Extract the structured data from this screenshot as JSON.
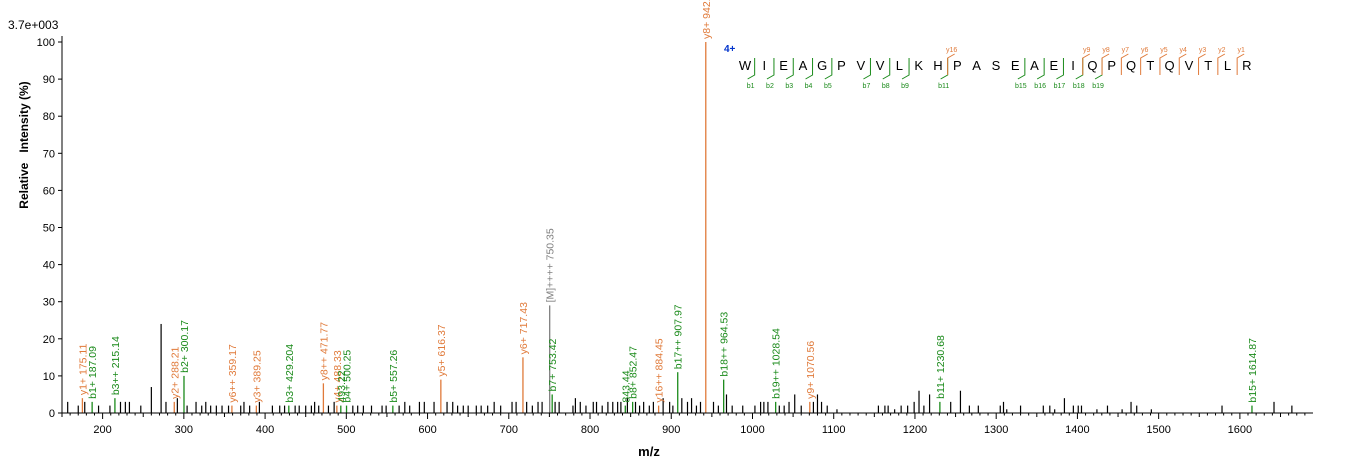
{
  "chart_data": {
    "type": "bar",
    "title": "3.7e+003",
    "xlabel": "m/z",
    "ylabel": "Relative   Intensity (%)",
    "xlim": [
      150,
      1690
    ],
    "ylim": [
      0,
      100
    ],
    "x_ticks": [
      200,
      300,
      400,
      500,
      600,
      700,
      800,
      900,
      1000,
      1100,
      1200,
      1300,
      1400,
      1500,
      1600
    ],
    "y_ticks": [
      0,
      10,
      20,
      30,
      40,
      50,
      60,
      70,
      80,
      90,
      100
    ],
    "grid": false,
    "colors": {
      "b_ion": "#1a8a1a",
      "y_ion": "#e07a3a",
      "other": "#808080",
      "unmatched": "#000000",
      "charge": "#0033cc"
    },
    "annotated_peaks": [
      {
        "mz": 175.11,
        "intensity": 4,
        "label": "y1+ 175.11",
        "ion": "y"
      },
      {
        "mz": 187.09,
        "intensity": 3,
        "label": "b1+ 187.09",
        "ion": "b"
      },
      {
        "mz": 215.14,
        "intensity": 4,
        "label": "b3++ 215.14",
        "ion": "b"
      },
      {
        "mz": 288.21,
        "intensity": 3,
        "label": "y2+ 288.21",
        "ion": "y"
      },
      {
        "mz": 300.17,
        "intensity": 10,
        "label": "b2+ 300.17",
        "ion": "b"
      },
      {
        "mz": 359.17,
        "intensity": 2,
        "label": "y6++ 359.17",
        "ion": "y"
      },
      {
        "mz": 389.25,
        "intensity": 2,
        "label": "y3+ 389.25",
        "ion": "y"
      },
      {
        "mz": 429.2,
        "intensity": 2,
        "label": "b3+ 429.204",
        "ion": "b"
      },
      {
        "mz": 471.77,
        "intensity": 8,
        "label": "y8++ 471.77",
        "ion": "y"
      },
      {
        "mz": 488.33,
        "intensity": 2,
        "label": "y4+ 488.33",
        "ion": "y"
      },
      {
        "mz": 493.22,
        "intensity": 2,
        "label": "493.22",
        "ion": "b"
      },
      {
        "mz": 500.25,
        "intensity": 2,
        "label": "b4+ 500.25",
        "ion": "b"
      },
      {
        "mz": 557.26,
        "intensity": 2,
        "label": "b5+ 557.26",
        "ion": "b"
      },
      {
        "mz": 616.37,
        "intensity": 9,
        "label": "y5+ 616.37",
        "ion": "y"
      },
      {
        "mz": 717.43,
        "intensity": 15,
        "label": "y6+ 717.43",
        "ion": "y"
      },
      {
        "mz": 750.35,
        "intensity": 29,
        "label": "[M]++++ 750.35",
        "ion": "other"
      },
      {
        "mz": 753.42,
        "intensity": 5,
        "label": "b7+ 753.42",
        "ion": "b"
      },
      {
        "mz": 843.44,
        "intensity": 2,
        "label": "843.44",
        "ion": "b"
      },
      {
        "mz": 852.47,
        "intensity": 3,
        "label": "b8+ 852.47",
        "ion": "b"
      },
      {
        "mz": 884.45,
        "intensity": 2,
        "label": "y16++ 884.45",
        "ion": "y"
      },
      {
        "mz": 907.97,
        "intensity": 11,
        "label": "b17++ 907.97",
        "ion": "b"
      },
      {
        "mz": 942.5,
        "intensity": 100,
        "label": "y8+ 942.5",
        "ion": "y"
      },
      {
        "mz": 964.53,
        "intensity": 9,
        "label": "b18++ 964.53",
        "ion": "b"
      },
      {
        "mz": 1028.54,
        "intensity": 3,
        "label": "b19++ 1028.54",
        "ion": "b"
      },
      {
        "mz": 1070.56,
        "intensity": 3,
        "label": "y9+ 1070.56",
        "ion": "y"
      },
      {
        "mz": 1230.68,
        "intensity": 3,
        "label": "b11+ 1230.68",
        "ion": "b"
      },
      {
        "mz": 1614.87,
        "intensity": 2,
        "label": "b15+ 1614.87",
        "ion": "b"
      }
    ],
    "unannotated_peaks": [
      [
        157,
        3
      ],
      [
        170,
        2
      ],
      [
        178,
        3
      ],
      [
        195,
        2
      ],
      [
        209,
        2
      ],
      [
        222,
        3
      ],
      [
        228,
        3
      ],
      [
        233,
        3
      ],
      [
        247,
        2
      ],
      [
        260,
        7
      ],
      [
        272,
        24
      ],
      [
        278,
        3
      ],
      [
        292,
        4
      ],
      [
        304,
        2
      ],
      [
        315,
        3
      ],
      [
        322,
        2
      ],
      [
        327,
        3
      ],
      [
        333,
        2
      ],
      [
        340,
        2
      ],
      [
        347,
        2
      ],
      [
        355,
        2
      ],
      [
        370,
        2
      ],
      [
        374,
        3
      ],
      [
        381,
        2
      ],
      [
        393,
        3
      ],
      [
        409,
        2
      ],
      [
        418,
        2
      ],
      [
        424,
        2
      ],
      [
        437,
        2
      ],
      [
        442,
        2
      ],
      [
        450,
        2
      ],
      [
        457,
        2
      ],
      [
        461,
        3
      ],
      [
        466,
        2
      ],
      [
        478,
        2
      ],
      [
        485,
        3
      ],
      [
        508,
        2
      ],
      [
        514,
        2
      ],
      [
        521,
        2
      ],
      [
        531,
        2
      ],
      [
        544,
        2
      ],
      [
        549,
        2
      ],
      [
        565,
        2
      ],
      [
        572,
        3
      ],
      [
        578,
        2
      ],
      [
        590,
        3
      ],
      [
        596,
        3
      ],
      [
        608,
        3
      ],
      [
        624,
        3
      ],
      [
        631,
        3
      ],
      [
        637,
        2
      ],
      [
        644,
        2
      ],
      [
        650,
        2
      ],
      [
        660,
        2
      ],
      [
        666,
        2
      ],
      [
        674,
        2
      ],
      [
        682,
        3
      ],
      [
        690,
        2
      ],
      [
        704,
        3
      ],
      [
        709,
        3
      ],
      [
        722,
        3
      ],
      [
        729,
        2
      ],
      [
        736,
        3
      ],
      [
        741,
        3
      ],
      [
        757,
        3
      ],
      [
        762,
        3
      ],
      [
        779,
        2
      ],
      [
        782,
        4
      ],
      [
        788,
        3
      ],
      [
        795,
        2
      ],
      [
        804,
        3
      ],
      [
        808,
        3
      ],
      [
        815,
        2
      ],
      [
        822,
        3
      ],
      [
        828,
        3
      ],
      [
        834,
        3
      ],
      [
        838,
        3
      ],
      [
        846,
        4
      ],
      [
        856,
        3
      ],
      [
        861,
        2
      ],
      [
        866,
        3
      ],
      [
        873,
        2
      ],
      [
        878,
        3
      ],
      [
        890,
        4
      ],
      [
        898,
        3
      ],
      [
        902,
        2
      ],
      [
        913,
        4
      ],
      [
        920,
        3
      ],
      [
        925,
        4
      ],
      [
        931,
        2
      ],
      [
        936,
        3
      ],
      [
        952,
        3
      ],
      [
        958,
        2
      ],
      [
        968,
        5
      ],
      [
        975,
        2
      ],
      [
        988,
        2
      ],
      [
        1003,
        2
      ],
      [
        1010,
        3
      ],
      [
        1014,
        3
      ],
      [
        1019,
        3
      ],
      [
        1033,
        2
      ],
      [
        1039,
        2
      ],
      [
        1045,
        3
      ],
      [
        1052,
        5
      ],
      [
        1060,
        2
      ],
      [
        1075,
        3
      ],
      [
        1080,
        5
      ],
      [
        1085,
        3
      ],
      [
        1092,
        2
      ],
      [
        1104,
        1
      ],
      [
        1155,
        2
      ],
      [
        1163,
        2
      ],
      [
        1167,
        2
      ],
      [
        1175,
        1
      ],
      [
        1183,
        2
      ],
      [
        1191,
        2
      ],
      [
        1199,
        3
      ],
      [
        1205,
        6
      ],
      [
        1211,
        2
      ],
      [
        1218,
        5
      ],
      [
        1244,
        3
      ],
      [
        1256,
        6
      ],
      [
        1267,
        2
      ],
      [
        1278,
        2
      ],
      [
        1305,
        2
      ],
      [
        1309,
        3
      ],
      [
        1313,
        1
      ],
      [
        1330,
        2
      ],
      [
        1358,
        2
      ],
      [
        1366,
        2
      ],
      [
        1372,
        1
      ],
      [
        1384,
        4
      ],
      [
        1395,
        2
      ],
      [
        1401,
        2
      ],
      [
        1405,
        2
      ],
      [
        1424,
        1
      ],
      [
        1437,
        2
      ],
      [
        1455,
        1
      ],
      [
        1466,
        3
      ],
      [
        1473,
        2
      ],
      [
        1491,
        1
      ],
      [
        1578,
        2
      ],
      [
        1642,
        3
      ],
      [
        1664,
        2
      ]
    ],
    "sequence": {
      "peptide": "WIEAGPVVLKHPASEAEIQPQTQVTLR",
      "charge": "4+",
      "residues": [
        "W",
        "I",
        "E",
        "A",
        "G",
        "P",
        "V",
        "V",
        "L",
        "K",
        "H",
        "P",
        "A",
        "S",
        "E",
        "A",
        "E",
        "I",
        "Q",
        "P",
        "Q",
        "T",
        "Q",
        "V",
        "T",
        "L",
        "R"
      ],
      "b_ions": [
        1,
        2,
        3,
        4,
        5,
        7,
        8,
        9,
        11,
        15,
        16,
        17,
        18,
        19
      ],
      "y_ions": [
        16,
        9,
        8,
        7,
        6,
        5,
        4,
        3,
        2,
        1
      ]
    }
  }
}
